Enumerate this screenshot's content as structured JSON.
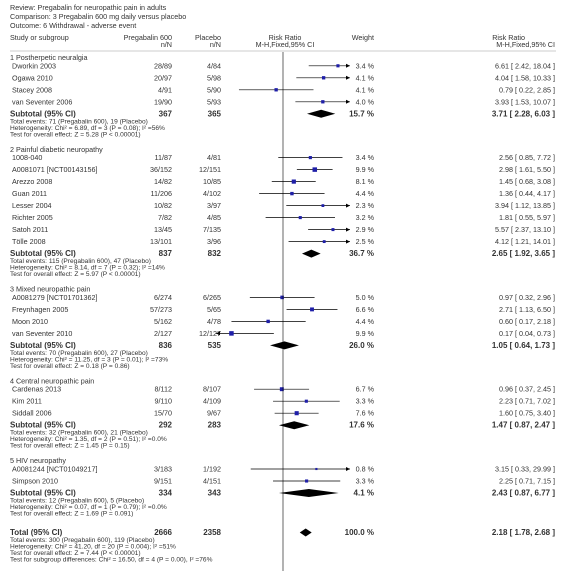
{
  "header": {
    "review": "Review: Pregabalin for neuropathic pain in adults",
    "comparison": "Comparison: 3 Pregabalin 600 mg daily versus placebo",
    "outcome": "Outcome: 6 Withdrawal - adverse event"
  },
  "columns": {
    "study": "Study or subgroup",
    "exp": "Pregabalin 600",
    "exp_sub": "n/N",
    "ctrl": "Placebo",
    "ctrl_sub": "n/N",
    "rr": "Risk Ratio",
    "rr_sub": "M-H,Fixed,95% CI",
    "weight": "Weight",
    "rr2": "Risk Ratio",
    "rr2_sub": "M-H,Fixed,95% CI"
  },
  "subtotal_label": "Subtotal (95% CI)",
  "total_label": "Total (95% CI)",
  "subgroups": [
    {
      "title": "1 Postherpetic neuralgia",
      "studies": [
        {
          "name": "Dworkin 2003",
          "exp": "28/89",
          "ctrl": "4/84",
          "weight": "3.4 %",
          "ci": "6.61 [ 2.42, 18.04 ]",
          "rr": 6.61,
          "lo": 2.42,
          "hi": 18.04,
          "w": 3.4
        },
        {
          "name": "Ogawa 2010",
          "exp": "20/97",
          "ctrl": "5/98",
          "weight": "4.1 %",
          "ci": "4.04 [ 1.58, 10.33 ]",
          "rr": 4.04,
          "lo": 1.58,
          "hi": 10.33,
          "w": 4.1
        },
        {
          "name": "Stacey 2008",
          "exp": "4/91",
          "ctrl": "5/90",
          "weight": "4.1 %",
          "ci": "0.79 [ 0.22, 2.85 ]",
          "rr": 0.79,
          "lo": 0.22,
          "hi": 2.85,
          "w": 4.1
        },
        {
          "name": "van Seventer 2006",
          "exp": "19/90",
          "ctrl": "5/93",
          "weight": "4.0 %",
          "ci": "3.93 [ 1.53, 10.07 ]",
          "rr": 3.93,
          "lo": 1.53,
          "hi": 10.07,
          "w": 4.0
        }
      ],
      "subtotal": {
        "exp": "367",
        "ctrl": "365",
        "weight": "15.7 %",
        "ci": "3.71 [ 2.28, 6.03 ]",
        "rr": 3.71,
        "lo": 2.28,
        "hi": 6.03
      },
      "notes": [
        "Total events: 71 (Pregabalin 600), 19 (Placebo)",
        "Heterogeneity: Chi² = 6.89, df = 3 (P = 0.08); I² =56%",
        "Test for overall effect: Z = 5.28 (P < 0.00001)"
      ]
    },
    {
      "title": "2 Painful diabetic neuropathy",
      "studies": [
        {
          "name": "1008-040",
          "exp": "11/87",
          "ctrl": "4/81",
          "weight": "3.4 %",
          "ci": "2.56 [ 0.85, 7.72 ]",
          "rr": 2.56,
          "lo": 0.85,
          "hi": 7.72,
          "w": 3.4
        },
        {
          "name": "A0081071 [NCT00143156]",
          "exp": "36/152",
          "ctrl": "12/151",
          "weight": "9.9 %",
          "ci": "2.98 [ 1.61, 5.50 ]",
          "rr": 2.98,
          "lo": 1.61,
          "hi": 5.5,
          "w": 9.9
        },
        {
          "name": "Arezzo 2008",
          "exp": "14/82",
          "ctrl": "10/85",
          "weight": "8.1 %",
          "ci": "1.45 [ 0.68, 3.08 ]",
          "rr": 1.45,
          "lo": 0.68,
          "hi": 3.08,
          "w": 8.1
        },
        {
          "name": "Guan 2011",
          "exp": "11/206",
          "ctrl": "4/102",
          "weight": "4.4 %",
          "ci": "1.36 [ 0.44, 4.17 ]",
          "rr": 1.36,
          "lo": 0.44,
          "hi": 4.17,
          "w": 4.4
        },
        {
          "name": "Lesser 2004",
          "exp": "10/82",
          "ctrl": "3/97",
          "weight": "2.3 %",
          "ci": "3.94 [ 1.12, 13.85 ]",
          "rr": 3.94,
          "lo": 1.12,
          "hi": 13.85,
          "w": 2.3
        },
        {
          "name": "Richter 2005",
          "exp": "7/82",
          "ctrl": "4/85",
          "weight": "3.2 %",
          "ci": "1.81 [ 0.55, 5.97 ]",
          "rr": 1.81,
          "lo": 0.55,
          "hi": 5.97,
          "w": 3.2
        },
        {
          "name": "Satoh 2011",
          "exp": "13/45",
          "ctrl": "7/135",
          "weight": "2.9 %",
          "ci": "5.57 [ 2.37, 13.10 ]",
          "rr": 5.57,
          "lo": 2.37,
          "hi": 13.1,
          "w": 2.9
        },
        {
          "name": "Tölle 2008",
          "exp": "13/101",
          "ctrl": "3/96",
          "weight": "2.5 %",
          "ci": "4.12 [ 1.21, 14.01 ]",
          "rr": 4.12,
          "lo": 1.21,
          "hi": 14.01,
          "w": 2.5
        }
      ],
      "subtotal": {
        "exp": "837",
        "ctrl": "832",
        "weight": "36.7 %",
        "ci": "2.65 [ 1.92, 3.65 ]",
        "rr": 2.65,
        "lo": 1.92,
        "hi": 3.65
      },
      "notes": [
        "Total events: 115 (Pregabalin 600), 47 (Placebo)",
        "Heterogeneity: Chi² = 8.14, df = 7 (P = 0.32); I² =14%",
        "Test for overall effect: Z = 5.97 (P < 0.00001)"
      ]
    },
    {
      "title": "3 Mixed neuropathic pain",
      "studies": [
        {
          "name": "A0081279 [NCT01701362]",
          "exp": "6/274",
          "ctrl": "6/265",
          "weight": "5.0 %",
          "ci": "0.97 [ 0.32, 2.96 ]",
          "rr": 0.97,
          "lo": 0.32,
          "hi": 2.96,
          "w": 5.0
        },
        {
          "name": "Freynhagen 2005",
          "exp": "57/273",
          "ctrl": "5/65",
          "weight": "6.6 %",
          "ci": "2.71 [ 1.13, 6.50 ]",
          "rr": 2.71,
          "lo": 1.13,
          "hi": 6.5,
          "w": 6.6
        },
        {
          "name": "Moon 2010",
          "exp": "5/162",
          "ctrl": "4/78",
          "weight": "4.4 %",
          "ci": "0.60 [ 0.17, 2.18 ]",
          "rr": 0.6,
          "lo": 0.17,
          "hi": 2.18,
          "w": 4.4
        },
        {
          "name": "van Seventer 2010",
          "exp": "2/127",
          "ctrl": "12/127",
          "weight": "9.9 %",
          "ci": "0.17 [ 0.04, 0.73 ]",
          "rr": 0.17,
          "lo": 0.04,
          "hi": 0.73,
          "w": 9.9
        }
      ],
      "subtotal": {
        "exp": "836",
        "ctrl": "535",
        "weight": "26.0 %",
        "ci": "1.05 [ 0.64, 1.73 ]",
        "rr": 1.05,
        "lo": 0.64,
        "hi": 1.73
      },
      "notes": [
        "Total events: 70 (Pregabalin 600), 27 (Placebo)",
        "Heterogeneity: Chi² = 11.25, df = 3 (P = 0.01); I² =73%",
        "Test for overall effect: Z = 0.18 (P = 0.86)"
      ]
    },
    {
      "title": "4 Central neuropathic pain",
      "studies": [
        {
          "name": "Cardenas 2013",
          "exp": "8/112",
          "ctrl": "8/107",
          "weight": "6.7 %",
          "ci": "0.96 [ 0.37, 2.45 ]",
          "rr": 0.96,
          "lo": 0.37,
          "hi": 2.45,
          "w": 6.7
        },
        {
          "name": "Kim 2011",
          "exp": "9/110",
          "ctrl": "4/109",
          "weight": "3.3 %",
          "ci": "2.23 [ 0.71, 7.02 ]",
          "rr": 2.23,
          "lo": 0.71,
          "hi": 7.02,
          "w": 3.3
        },
        {
          "name": "Siddall 2006",
          "exp": "15/70",
          "ctrl": "9/67",
          "weight": "7.6 %",
          "ci": "1.60 [ 0.75, 3.40 ]",
          "rr": 1.6,
          "lo": 0.75,
          "hi": 3.4,
          "w": 7.6
        }
      ],
      "subtotal": {
        "exp": "292",
        "ctrl": "283",
        "weight": "17.6 %",
        "ci": "1.47 [ 0.87, 2.47 ]",
        "rr": 1.47,
        "lo": 0.87,
        "hi": 2.47
      },
      "notes": [
        "Total events: 32 (Pregabalin 600), 21 (Placebo)",
        "Heterogeneity: Chi² = 1.35, df = 2 (P = 0.51); I² =0.0%",
        "Test for overall effect: Z = 1.45 (P = 0.15)"
      ]
    },
    {
      "title": "5 HIV neuropathy",
      "studies": [
        {
          "name": "A0081244 [NCT01049217]",
          "exp": "3/183",
          "ctrl": "1/192",
          "weight": "0.8 %",
          "ci": "3.15 [ 0.33, 29.99 ]",
          "rr": 3.15,
          "lo": 0.33,
          "hi": 29.99,
          "w": 0.8
        },
        {
          "name": "Simpson 2010",
          "exp": "9/151",
          "ctrl": "4/151",
          "weight": "3.3 %",
          "ci": "2.25 [ 0.71, 7.15 ]",
          "rr": 2.25,
          "lo": 0.71,
          "hi": 7.15,
          "w": 3.3
        }
      ],
      "subtotal": {
        "exp": "334",
        "ctrl": "343",
        "weight": "4.1 %",
        "ci": "2.43 [ 0.87, 6.77 ]",
        "rr": 2.43,
        "lo": 0.87,
        "hi": 6.77
      },
      "notes": [
        "Total events: 12 (Pregabalin 600), 5 (Placebo)",
        "Heterogeneity: Chi² = 0.07, df = 1 (P = 0.79); I² =0.0%",
        "Test for overall effect: Z = 1.69 (P = 0.091)"
      ]
    }
  ],
  "total": {
    "exp": "2666",
    "ctrl": "2358",
    "weight": "100.0 %",
    "ci": "2.18 [ 1.78, 2.68 ]",
    "rr": 2.18,
    "lo": 1.78,
    "hi": 2.68,
    "notes": [
      "Total events: 300 (Pregabalin 600), 119 (Placebo)",
      "Heterogeneity: Chi² = 41.20, df = 20 (P = 0.004); I² =51%",
      "Test for overall effect: Z = 7.44 (P < 0.00001)",
      "Test for subgroup differences: Chi² = 16.50, df = 4 (P = 0.00), I² =76%"
    ]
  },
  "axis": {
    "ticks": [
      0.1,
      0.2,
      0.5,
      1,
      2,
      5,
      10
    ],
    "tick_labels": [
      "0.1",
      "0.2",
      "0.5",
      "1",
      "2",
      "5",
      "10"
    ],
    "favours_left": "Favours pregabalin",
    "favours_right": "Favours placebo"
  },
  "colors": {
    "marker": "#1f1fa8",
    "line": "#000000",
    "text": "#333333"
  },
  "chart_data": {
    "type": "forest",
    "scale": "log",
    "xlim": [
      0.1,
      10
    ],
    "reference_line": 1
  }
}
